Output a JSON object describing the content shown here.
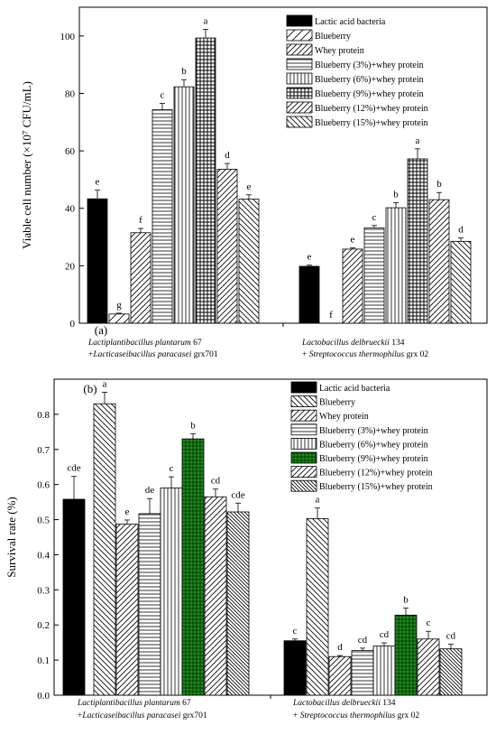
{
  "legend_entries": [
    "Lactic acid bacteria",
    "Blueberry",
    "Whey protein",
    "Blueberry (3%)+whey protein",
    "Blueberry (6%)+whey protein",
    "Blueberry (9%)+whey protein",
    "Blueberry (12%)+whey protein",
    "Blueberry (15%)+whey protein"
  ],
  "chart_data": [
    {
      "type": "bar",
      "panel_label": "(a)",
      "ylabel": "Viable cell number (×10⁷ CFU/mL)",
      "ylim": [
        0,
        110
      ],
      "yticks": [
        0,
        20,
        40,
        60,
        80,
        100
      ],
      "legend_position": "top-right",
      "categories": [
        {
          "name_italic": "Lactiplantibacillus plantarum",
          "name_suffix": " 67",
          "line2_prefix": "+",
          "line2_italic": "Lacticaseibacillus paracasei",
          "line2_suffix": " grx701"
        },
        {
          "name_italic": "Lactobacillus delbrueckii",
          "name_suffix": " 134",
          "line2_prefix": "+ ",
          "line2_italic": "Streptococcus thermophilus",
          "line2_suffix": " grx 02"
        }
      ],
      "series": [
        {
          "name": "Lactic acid bacteria",
          "values": [
            43.3,
            19.8
          ],
          "errors": [
            3.0,
            0.4
          ],
          "letters": [
            "e",
            "e"
          ]
        },
        {
          "name": "Blueberry",
          "values": [
            3.2,
            0
          ],
          "errors": [
            0.3,
            0
          ],
          "letters": [
            "g",
            "f"
          ]
        },
        {
          "name": "Whey protein",
          "values": [
            31.5,
            25.8
          ],
          "errors": [
            1.5,
            0.4
          ],
          "letters": [
            "f",
            "e"
          ]
        },
        {
          "name": "Blueberry (3%)+whey protein",
          "values": [
            74.3,
            33.2
          ],
          "errors": [
            2.2,
            0.8
          ],
          "letters": [
            "c",
            "c"
          ]
        },
        {
          "name": "Blueberry (6%)+whey protein",
          "values": [
            82.3,
            40.2
          ],
          "errors": [
            2.5,
            1.8
          ],
          "letters": [
            "b",
            "b"
          ]
        },
        {
          "name": "Blueberry (9%)+whey protein",
          "values": [
            99.3,
            57.2
          ],
          "errors": [
            3.0,
            3.5
          ],
          "letters": [
            "a",
            "a"
          ]
        },
        {
          "name": "Blueberry (12%)+whey protein",
          "values": [
            53.6,
            43.0
          ],
          "errors": [
            2.0,
            2.5
          ],
          "letters": [
            "d",
            "b"
          ]
        },
        {
          "name": "Blueberry (15%)+whey protein",
          "values": [
            43.2,
            28.5
          ],
          "errors": [
            1.5,
            1.2
          ],
          "letters": [
            "e",
            "d"
          ]
        }
      ]
    },
    {
      "type": "bar",
      "panel_label": "(b)",
      "ylabel": "Survival rate (%)",
      "ylim": [
        0,
        0.9
      ],
      "yticks": [
        0.0,
        0.1,
        0.2,
        0.3,
        0.4,
        0.5,
        0.6,
        0.7,
        0.8
      ],
      "legend_position": "top-right",
      "categories": [
        {
          "name_italic": "Lactiplantibacillus plantarum",
          "name_suffix": " 67",
          "line2_prefix": "+",
          "line2_italic": "Lacticaseibacillus paracasei",
          "line2_suffix": " grx701"
        },
        {
          "name_italic": "Lactobacillus delbrueckii",
          "name_suffix": " 134",
          "line2_prefix": "+ ",
          "line2_italic": "Streptococcus thermophilus",
          "line2_suffix": " grx 02"
        }
      ],
      "series": [
        {
          "name": "Lactic acid bacteria",
          "values": [
            0.558,
            0.155
          ],
          "errors": [
            0.065,
            0.005
          ],
          "letters": [
            "cde",
            "c"
          ]
        },
        {
          "name": "Blueberry",
          "values": [
            0.83,
            0.503
          ],
          "errors": [
            0.033,
            0.03
          ],
          "letters": [
            "a",
            "a"
          ]
        },
        {
          "name": "Whey protein",
          "values": [
            0.487,
            0.11
          ],
          "errors": [
            0.012,
            0.003
          ],
          "letters": [
            "e",
            "d"
          ]
        },
        {
          "name": "Blueberry (3%)+whey protein",
          "values": [
            0.517,
            0.127
          ],
          "errors": [
            0.043,
            0.007
          ],
          "letters": [
            "de",
            "cd"
          ]
        },
        {
          "name": "Blueberry (6%)+whey protein",
          "values": [
            0.59,
            0.14
          ],
          "errors": [
            0.032,
            0.009
          ],
          "letters": [
            "c",
            "cd"
          ]
        },
        {
          "name": "Blueberry (9%)+whey protein",
          "values": [
            0.73,
            0.228
          ],
          "errors": [
            0.015,
            0.02
          ],
          "letters": [
            "b",
            "b"
          ]
        },
        {
          "name": "Blueberry (12%)+whey protein",
          "values": [
            0.565,
            0.16
          ],
          "errors": [
            0.022,
            0.022
          ],
          "letters": [
            "cd",
            "c"
          ]
        },
        {
          "name": "Blueberry (15%)+whey protein",
          "values": [
            0.522,
            0.132
          ],
          "errors": [
            0.025,
            0.013
          ],
          "letters": [
            "cde",
            "cd"
          ]
        }
      ]
    }
  ]
}
